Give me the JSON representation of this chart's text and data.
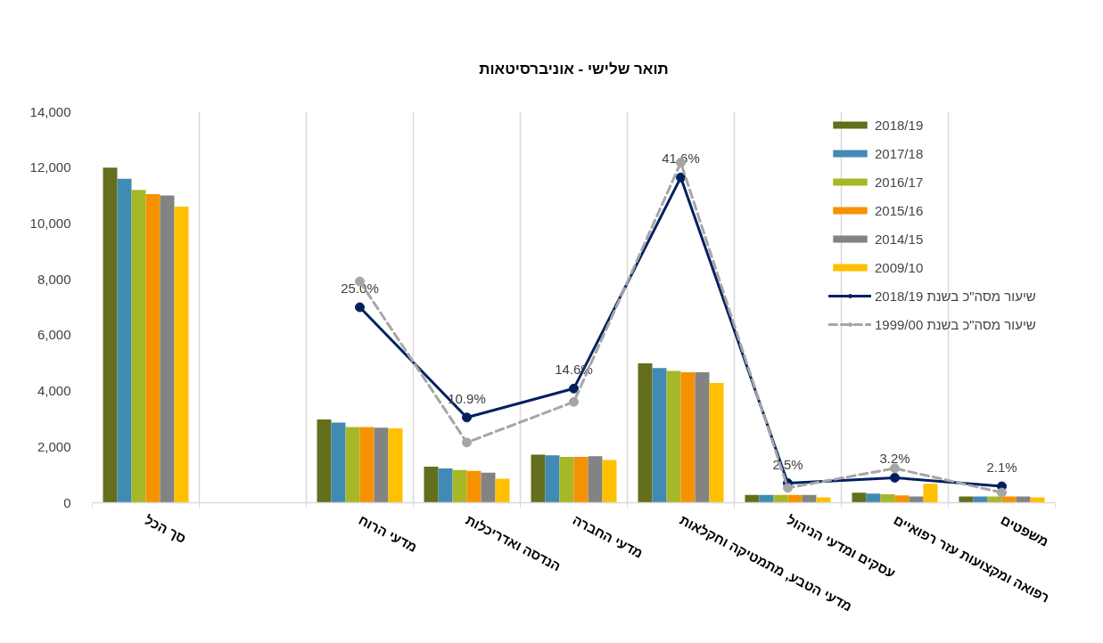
{
  "chart_data": {
    "type": "bar",
    "title": "תואר שלישי - אוניברסיטאות",
    "categories": [
      "סך הכל",
      null,
      "מדעי הרוח",
      "הנדסה ואדריכלות",
      "מדעי החברה",
      "מדעי הטבע, מתמטיקה וחקלאות",
      "עסקים ומדעי הניהול",
      "רפואה ומקצועות עזר רפואיים",
      "משפטים"
    ],
    "series": [
      {
        "name": "2018/19",
        "color": "#646e1c",
        "values": [
          12000,
          null,
          2980,
          1290,
          1720,
          4990,
          280,
          360,
          220
        ]
      },
      {
        "name": "2017/18",
        "color": "#418ab3",
        "values": [
          11600,
          null,
          2870,
          1230,
          1700,
          4820,
          280,
          330,
          220
        ]
      },
      {
        "name": "2016/17",
        "color": "#a6b727",
        "values": [
          11200,
          null,
          2710,
          1170,
          1640,
          4720,
          280,
          300,
          220
        ]
      },
      {
        "name": "2015/16",
        "color": "#f59201",
        "values": [
          11050,
          null,
          2710,
          1140,
          1640,
          4670,
          280,
          260,
          220
        ]
      },
      {
        "name": "2014/15",
        "color": "#838383",
        "values": [
          11000,
          null,
          2690,
          1080,
          1670,
          4670,
          280,
          220,
          220
        ]
      },
      {
        "name": "2009/10",
        "color": "#ffc000",
        "values": [
          10600,
          null,
          2660,
          860,
          1530,
          4290,
          190,
          680,
          190
        ]
      },
      {
        "name": "שיעור מסה\"כ בשנת 2018/19",
        "type": "line",
        "axis": "y2",
        "color": "#002060",
        "marker": "circle",
        "line_style": "solid",
        "values": [
          null,
          null,
          25.0,
          10.9,
          14.6,
          41.6,
          2.5,
          3.2,
          2.1
        ],
        "value_labels": [
          null,
          null,
          "25.0%",
          "10.9%",
          "14.6%",
          "41.6%",
          "2.5%",
          "3.2%",
          "2.1%"
        ]
      },
      {
        "name": "שיעור מסה\"כ בשנת 1999/00",
        "type": "line",
        "axis": "y2",
        "color": "#a6a6a6",
        "marker": "circle",
        "line_style": "dashed",
        "values": [
          null,
          null,
          28.3,
          7.7,
          12.9,
          43.5,
          1.9,
          4.4,
          1.3
        ]
      }
    ],
    "ylim": [
      0,
      14000
    ],
    "yticks": [
      0,
      {
        "value": 2000,
        "label": "2,000"
      },
      {
        "value": 4000,
        "label": "4,000"
      },
      {
        "value": 6000,
        "label": "6,000"
      },
      {
        "value": 8000,
        "label": "8,000"
      },
      {
        "value": 10000,
        "label": "10,000"
      },
      {
        "value": 12000,
        "label": "12,000"
      },
      {
        "value": 14000,
        "label": "14,000"
      }
    ],
    "y2lim": [
      0,
      50
    ],
    "grid": "x",
    "legend": "top right"
  }
}
